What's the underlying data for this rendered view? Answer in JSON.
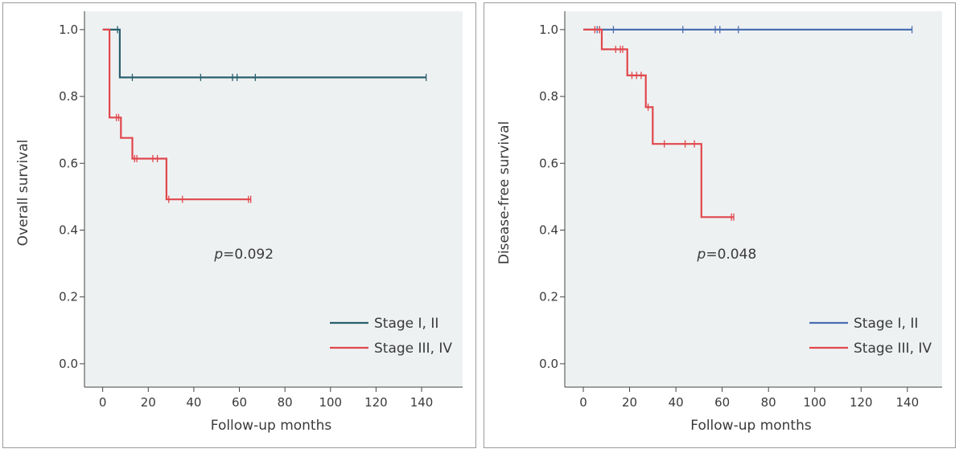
{
  "chart_data": [
    {
      "type": "line",
      "subtype": "kaplan-meier",
      "title": "",
      "xlabel": "Follow-up months",
      "ylabel": "Overall survival",
      "xlim": [
        -8,
        158
      ],
      "ylim": [
        -0.07,
        1.055
      ],
      "xticks": [
        0,
        20,
        40,
        60,
        80,
        100,
        120,
        140
      ],
      "yticks": [
        0.0,
        0.2,
        0.4,
        0.6,
        0.8,
        1.0
      ],
      "ytick_labels": [
        "0.0",
        "0.2",
        "0.4",
        "0.6",
        "0.8",
        "1.0"
      ],
      "annotation": {
        "prefix": "p",
        "text": "=0.092",
        "x": 62,
        "y": 0.315
      },
      "legend_position": "bottom-right",
      "grid": false,
      "series": [
        {
          "name": "Stage I, II",
          "color": "#2a5f6e",
          "steps": [
            [
              0,
              1.0
            ],
            [
              7.5,
              1.0
            ],
            [
              7.5,
              0.857
            ],
            [
              142,
              0.857
            ]
          ],
          "censored": [
            [
              6.5,
              1.0
            ],
            [
              13,
              0.857
            ],
            [
              43,
              0.857
            ],
            [
              57,
              0.857
            ],
            [
              59,
              0.857
            ],
            [
              67,
              0.857
            ],
            [
              142,
              0.857
            ]
          ]
        },
        {
          "name": "Stage III, IV",
          "color": "#e0474c",
          "steps": [
            [
              0,
              1.0
            ],
            [
              3,
              1.0
            ],
            [
              3,
              0.737
            ],
            [
              8,
              0.737
            ],
            [
              8,
              0.676
            ],
            [
              13,
              0.676
            ],
            [
              13,
              0.614
            ],
            [
              28,
              0.614
            ],
            [
              28,
              0.492
            ],
            [
              65,
              0.492
            ]
          ],
          "censored": [
            [
              6,
              0.737
            ],
            [
              7,
              0.737
            ],
            [
              14,
              0.614
            ],
            [
              15,
              0.614
            ],
            [
              22,
              0.614
            ],
            [
              24,
              0.614
            ],
            [
              29,
              0.492
            ],
            [
              35,
              0.492
            ],
            [
              64,
              0.492
            ],
            [
              65,
              0.492
            ]
          ]
        }
      ]
    },
    {
      "type": "line",
      "subtype": "kaplan-meier",
      "title": "",
      "xlabel": "Follow-up months",
      "ylabel": "Disease-free survival",
      "xlim": [
        -8,
        155
      ],
      "ylim": [
        -0.07,
        1.055
      ],
      "xticks": [
        0,
        20,
        40,
        60,
        80,
        100,
        120,
        140
      ],
      "yticks": [
        0.0,
        0.2,
        0.4,
        0.6,
        0.8,
        1.0
      ],
      "ytick_labels": [
        "0.0",
        "0.2",
        "0.4",
        "0.6",
        "0.8",
        "1.0"
      ],
      "annotation": {
        "prefix": "p",
        "text": "=0.048",
        "x": 62,
        "y": 0.315
      },
      "legend_position": "bottom-right",
      "grid": false,
      "series": [
        {
          "name": "Stage I, II",
          "color": "#4a6fb0",
          "steps": [
            [
              0,
              1.0
            ],
            [
              142,
              1.0
            ]
          ],
          "censored": [
            [
              6,
              1.0
            ],
            [
              7,
              1.0
            ],
            [
              13,
              1.0
            ],
            [
              43,
              1.0
            ],
            [
              57,
              1.0
            ],
            [
              59,
              1.0
            ],
            [
              67,
              1.0
            ],
            [
              142,
              1.0
            ]
          ]
        },
        {
          "name": "Stage III, IV",
          "color": "#e0474c",
          "steps": [
            [
              0,
              1.0
            ],
            [
              8,
              1.0
            ],
            [
              8,
              0.941
            ],
            [
              19,
              0.941
            ],
            [
              19,
              0.863
            ],
            [
              27,
              0.863
            ],
            [
              27,
              0.768
            ],
            [
              30,
              0.768
            ],
            [
              30,
              0.658
            ],
            [
              51,
              0.658
            ],
            [
              51,
              0.439
            ],
            [
              65,
              0.439
            ]
          ],
          "censored": [
            [
              5,
              1.0
            ],
            [
              7,
              1.0
            ],
            [
              14,
              0.941
            ],
            [
              16,
              0.941
            ],
            [
              17,
              0.941
            ],
            [
              21,
              0.863
            ],
            [
              23,
              0.863
            ],
            [
              25,
              0.863
            ],
            [
              28,
              0.768
            ],
            [
              35,
              0.658
            ],
            [
              44,
              0.658
            ],
            [
              48,
              0.658
            ],
            [
              64,
              0.439
            ],
            [
              65,
              0.439
            ]
          ]
        }
      ]
    }
  ]
}
